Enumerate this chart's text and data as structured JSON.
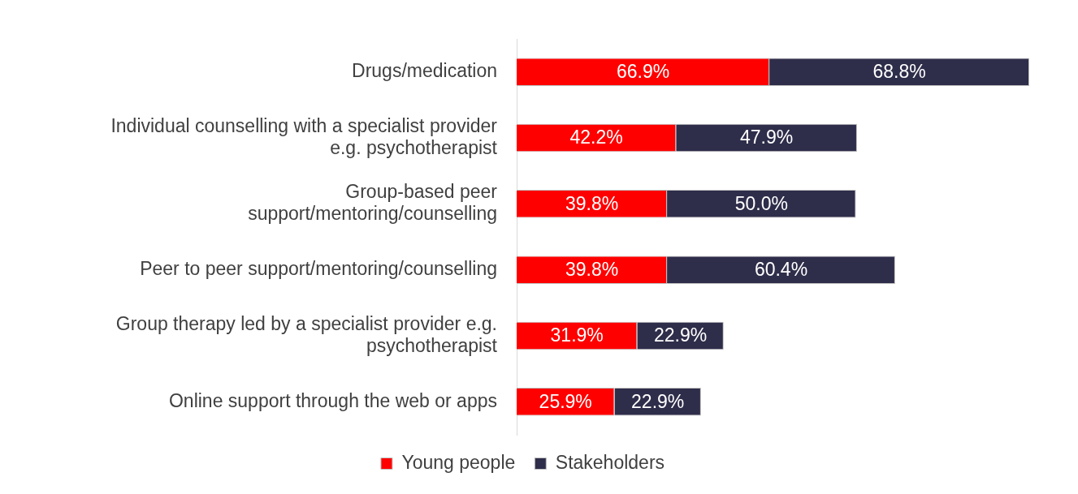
{
  "chart_data": {
    "type": "bar",
    "orientation": "horizontal",
    "stacked": true,
    "legend": "bottom",
    "grid": false,
    "categories": [
      "Drugs/medication",
      "Individual counselling with a specialist provider e.g. psychotherapist",
      "Group-based peer support/mentoring/counselling",
      "Peer to peer support/mentoring/counselling",
      "Group therapy led by a specialist provider e.g. psychotherapist",
      "Online support through the web or apps"
    ],
    "series": [
      {
        "name": "Young people",
        "color": "#ff0000",
        "values": [
          66.9,
          42.2,
          39.8,
          39.8,
          31.9,
          25.9
        ],
        "value_labels": [
          "66.9%",
          "42.2%",
          "39.8%",
          "39.8%",
          "31.9%",
          "25.9%"
        ]
      },
      {
        "name": "Stakeholders",
        "color": "#2e2d4a",
        "values": [
          68.8,
          47.9,
          50.0,
          60.4,
          22.9,
          22.9
        ],
        "value_labels": [
          "68.8%",
          "47.9%",
          "50.0%",
          "60.4%",
          "22.9%",
          "22.9%"
        ]
      }
    ]
  }
}
